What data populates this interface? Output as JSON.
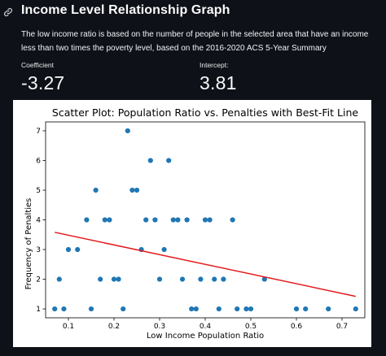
{
  "page": {
    "title": "Income Level Relationship Graph",
    "description": "The low income ratio is based on the number of people in the selected area that have an income less than two times the poverty level, based on the 2016-2020 ACS 5-Year Summary"
  },
  "metrics": [
    {
      "label": "Coefficient",
      "value": "-3.27"
    },
    {
      "label": "Intercept:",
      "value": "3.81"
    }
  ],
  "icons": {
    "anchor": "link-icon"
  },
  "colors": {
    "points": "#1f77b4",
    "fit_line": "#e31a1c",
    "background": "#0e1117"
  },
  "chart_data": {
    "type": "scatter",
    "title": "Scatter Plot: Population Ratio vs. Penalties with Best-Fit Line",
    "xlabel": "Low Income Population Ratio",
    "ylabel": "Frequency of Penalties",
    "xlim": [
      0.05,
      0.75
    ],
    "ylim": [
      0.7,
      7.3
    ],
    "xticks": [
      "0.1",
      "0.2",
      "0.3",
      "0.4",
      "0.5",
      "0.6",
      "0.7"
    ],
    "yticks": [
      "1",
      "2",
      "3",
      "4",
      "5",
      "6",
      "7"
    ],
    "grid": false,
    "points": [
      [
        0.07,
        1
      ],
      [
        0.08,
        2
      ],
      [
        0.09,
        1
      ],
      [
        0.1,
        3
      ],
      [
        0.12,
        3
      ],
      [
        0.14,
        4
      ],
      [
        0.15,
        1
      ],
      [
        0.16,
        5
      ],
      [
        0.17,
        2
      ],
      [
        0.18,
        4
      ],
      [
        0.19,
        4
      ],
      [
        0.2,
        2
      ],
      [
        0.21,
        2
      ],
      [
        0.22,
        1
      ],
      [
        0.23,
        7
      ],
      [
        0.24,
        5
      ],
      [
        0.25,
        5
      ],
      [
        0.26,
        3
      ],
      [
        0.27,
        4
      ],
      [
        0.28,
        6
      ],
      [
        0.29,
        4
      ],
      [
        0.3,
        2
      ],
      [
        0.31,
        3
      ],
      [
        0.32,
        6
      ],
      [
        0.33,
        4
      ],
      [
        0.34,
        4
      ],
      [
        0.35,
        2
      ],
      [
        0.36,
        4
      ],
      [
        0.37,
        1
      ],
      [
        0.38,
        1
      ],
      [
        0.39,
        2
      ],
      [
        0.4,
        4
      ],
      [
        0.41,
        4
      ],
      [
        0.42,
        2
      ],
      [
        0.43,
        1
      ],
      [
        0.44,
        2
      ],
      [
        0.46,
        4
      ],
      [
        0.47,
        1
      ],
      [
        0.49,
        1
      ],
      [
        0.5,
        1
      ],
      [
        0.53,
        2
      ],
      [
        0.6,
        1
      ],
      [
        0.62,
        1
      ],
      [
        0.67,
        1
      ],
      [
        0.73,
        1
      ]
    ],
    "fit_line": {
      "slope": -3.27,
      "intercept": 3.81,
      "x_range": [
        0.07,
        0.73
      ]
    }
  }
}
